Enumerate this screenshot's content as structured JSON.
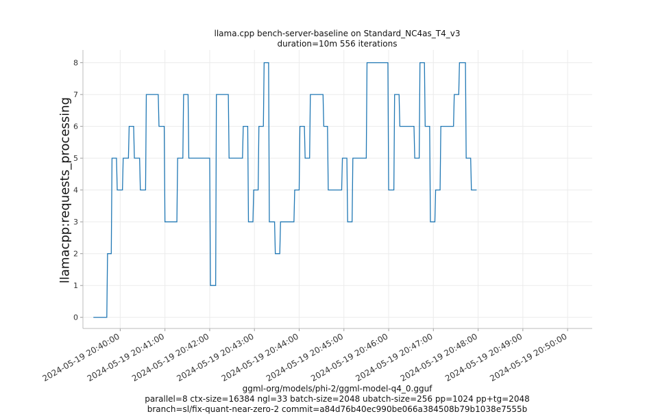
{
  "chart_data": {
    "type": "line",
    "title": "llama.cpp bench-server-baseline on Standard_NC4as_T4_v3",
    "subtitle": "duration=10m 556 iterations",
    "ylabel": "llamacpp:requests_processing",
    "xlabel": "",
    "ylim": [
      -0.35,
      8.4
    ],
    "yticks": [
      0,
      1,
      2,
      3,
      4,
      5,
      6,
      7,
      8
    ],
    "x_start": "2024-05-19 20:39:24",
    "xlim": [
      "2024-05-19 20:39:10",
      "2024-05-19 20:50:33"
    ],
    "x_ticks": [
      "2024-05-19 20:40:00",
      "2024-05-19 20:41:00",
      "2024-05-19 20:42:00",
      "2024-05-19 20:43:00",
      "2024-05-19 20:44:00",
      "2024-05-19 20:45:00",
      "2024-05-19 20:46:00",
      "2024-05-19 20:47:00",
      "2024-05-19 20:48:00",
      "2024-05-19 20:49:00",
      "2024-05-19 20:50:00"
    ],
    "grid": true,
    "series": [
      {
        "color": "#1f77b4",
        "step": true,
        "points": [
          [
            "2024-05-19 20:39:24",
            0
          ],
          [
            "2024-05-19 20:39:42",
            0
          ],
          [
            "2024-05-19 20:39:43",
            2
          ],
          [
            "2024-05-19 20:39:48",
            2
          ],
          [
            "2024-05-19 20:39:49",
            5
          ],
          [
            "2024-05-19 20:39:55",
            5
          ],
          [
            "2024-05-19 20:39:56",
            4
          ],
          [
            "2024-05-19 20:40:03",
            4
          ],
          [
            "2024-05-19 20:40:04",
            5
          ],
          [
            "2024-05-19 20:40:11",
            5
          ],
          [
            "2024-05-19 20:40:12",
            6
          ],
          [
            "2024-05-19 20:40:18",
            6
          ],
          [
            "2024-05-19 20:40:19",
            5
          ],
          [
            "2024-05-19 20:40:26",
            5
          ],
          [
            "2024-05-19 20:40:27",
            4
          ],
          [
            "2024-05-19 20:40:34",
            4
          ],
          [
            "2024-05-19 20:40:35",
            7
          ],
          [
            "2024-05-19 20:40:51",
            7
          ],
          [
            "2024-05-19 20:40:52",
            6
          ],
          [
            "2024-05-19 20:40:59",
            6
          ],
          [
            "2024-05-19 20:41:00",
            3
          ],
          [
            "2024-05-19 20:41:16",
            3
          ],
          [
            "2024-05-19 20:41:17",
            5
          ],
          [
            "2024-05-19 20:41:24",
            5
          ],
          [
            "2024-05-19 20:41:25",
            7
          ],
          [
            "2024-05-19 20:41:31",
            7
          ],
          [
            "2024-05-19 20:41:32",
            5
          ],
          [
            "2024-05-19 20:42:00",
            5
          ],
          [
            "2024-05-19 20:42:01",
            1
          ],
          [
            "2024-05-19 20:42:08",
            1
          ],
          [
            "2024-05-19 20:42:09",
            7
          ],
          [
            "2024-05-19 20:42:25",
            7
          ],
          [
            "2024-05-19 20:42:26",
            5
          ],
          [
            "2024-05-19 20:42:44",
            5
          ],
          [
            "2024-05-19 20:42:45",
            6
          ],
          [
            "2024-05-19 20:42:51",
            6
          ],
          [
            "2024-05-19 20:42:52",
            3
          ],
          [
            "2024-05-19 20:42:58",
            3
          ],
          [
            "2024-05-19 20:42:59",
            4
          ],
          [
            "2024-05-19 20:43:05",
            4
          ],
          [
            "2024-05-19 20:43:06",
            6
          ],
          [
            "2024-05-19 20:43:12",
            6
          ],
          [
            "2024-05-19 20:43:13",
            8
          ],
          [
            "2024-05-19 20:43:19",
            8
          ],
          [
            "2024-05-19 20:43:20",
            3
          ],
          [
            "2024-05-19 20:43:27",
            3
          ],
          [
            "2024-05-19 20:43:28",
            2
          ],
          [
            "2024-05-19 20:43:34",
            2
          ],
          [
            "2024-05-19 20:43:35",
            3
          ],
          [
            "2024-05-19 20:43:53",
            3
          ],
          [
            "2024-05-19 20:43:54",
            4
          ],
          [
            "2024-05-19 20:44:00",
            4
          ],
          [
            "2024-05-19 20:44:01",
            6
          ],
          [
            "2024-05-19 20:44:07",
            6
          ],
          [
            "2024-05-19 20:44:08",
            5
          ],
          [
            "2024-05-19 20:44:14",
            5
          ],
          [
            "2024-05-19 20:44:15",
            7
          ],
          [
            "2024-05-19 20:44:32",
            7
          ],
          [
            "2024-05-19 20:44:33",
            6
          ],
          [
            "2024-05-19 20:44:38",
            6
          ],
          [
            "2024-05-19 20:44:39",
            4
          ],
          [
            "2024-05-19 20:44:57",
            4
          ],
          [
            "2024-05-19 20:44:58",
            5
          ],
          [
            "2024-05-19 20:45:04",
            5
          ],
          [
            "2024-05-19 20:45:05",
            3
          ],
          [
            "2024-05-19 20:45:11",
            3
          ],
          [
            "2024-05-19 20:45:12",
            5
          ],
          [
            "2024-05-19 20:45:30",
            5
          ],
          [
            "2024-05-19 20:45:31",
            8
          ],
          [
            "2024-05-19 20:45:59",
            8
          ],
          [
            "2024-05-19 20:46:00",
            4
          ],
          [
            "2024-05-19 20:46:07",
            4
          ],
          [
            "2024-05-19 20:46:08",
            7
          ],
          [
            "2024-05-19 20:46:14",
            7
          ],
          [
            "2024-05-19 20:46:15",
            6
          ],
          [
            "2024-05-19 20:46:34",
            6
          ],
          [
            "2024-05-19 20:46:35",
            5
          ],
          [
            "2024-05-19 20:46:41",
            5
          ],
          [
            "2024-05-19 20:46:42",
            8
          ],
          [
            "2024-05-19 20:46:48",
            8
          ],
          [
            "2024-05-19 20:46:49",
            6
          ],
          [
            "2024-05-19 20:46:55",
            6
          ],
          [
            "2024-05-19 20:46:56",
            3
          ],
          [
            "2024-05-19 20:47:02",
            3
          ],
          [
            "2024-05-19 20:47:03",
            4
          ],
          [
            "2024-05-19 20:47:09",
            4
          ],
          [
            "2024-05-19 20:47:10",
            6
          ],
          [
            "2024-05-19 20:47:27",
            6
          ],
          [
            "2024-05-19 20:47:28",
            7
          ],
          [
            "2024-05-19 20:47:34",
            7
          ],
          [
            "2024-05-19 20:47:35",
            8
          ],
          [
            "2024-05-19 20:47:43",
            8
          ],
          [
            "2024-05-19 20:47:44",
            5
          ],
          [
            "2024-05-19 20:47:50",
            5
          ],
          [
            "2024-05-19 20:47:51",
            4
          ],
          [
            "2024-05-19 20:47:58",
            4
          ]
        ]
      }
    ],
    "footer": [
      "ggml-org/models/phi-2/ggml-model-q4_0.gguf",
      "parallel=8 ctx-size=16384 ngl=33 batch-size=2048 ubatch-size=256 pp=1024 pp+tg=2048",
      "branch=sl/fix-quant-near-zero-2 commit=a84d76b40ec990be066a384508b79b1038e7555b"
    ]
  }
}
